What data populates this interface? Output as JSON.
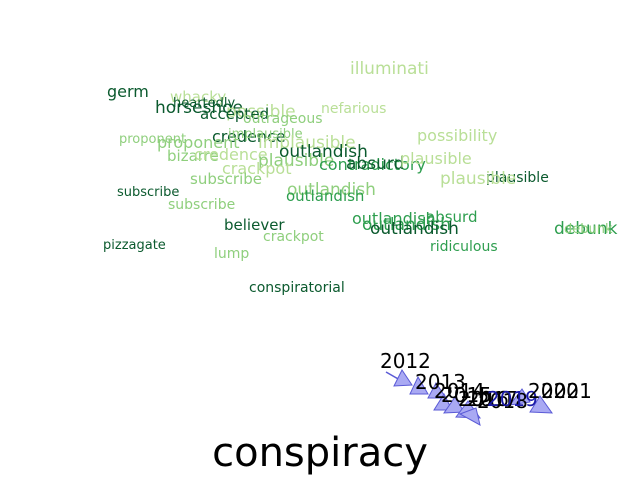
{
  "title": "conspiracy",
  "palette": {
    "dark": "#0b5a2e",
    "mid": "#2e9e4f",
    "light": "#8fcf7d",
    "pale": "#b9df97",
    "arrow_fill": "#a9a9f3",
    "arrow_stroke": "#5a5ad6"
  },
  "words": [
    {
      "text": "illuminati",
      "shade": "pale"
    },
    {
      "text": "germ",
      "shade": "dark"
    },
    {
      "text": "whacky",
      "shade": "pale"
    },
    {
      "text": "heartedly",
      "shade": "dark"
    },
    {
      "text": "horseshoe",
      "shade": "dark"
    },
    {
      "text": "possible",
      "shade": "pale"
    },
    {
      "text": "accepted",
      "shade": "dark"
    },
    {
      "text": "outrageous",
      "shade": "light"
    },
    {
      "text": "nefarious",
      "shade": "pale"
    },
    {
      "text": "possibility",
      "shade": "pale"
    },
    {
      "text": "proponent",
      "shade": "light"
    },
    {
      "text": "credence",
      "shade": "dark"
    },
    {
      "text": "implausible",
      "shade": "light"
    },
    {
      "text": "proponent",
      "shade": "light"
    },
    {
      "text": "implausible",
      "shade": "pale"
    },
    {
      "text": "outlandish",
      "shade": "dark"
    },
    {
      "text": "bizarre",
      "shade": "light"
    },
    {
      "text": "credence",
      "shade": "pale"
    },
    {
      "text": "plausible",
      "shade": "light"
    },
    {
      "text": "contradictory",
      "shade": "mid"
    },
    {
      "text": "absurd",
      "shade": "dark"
    },
    {
      "text": "crackpot",
      "shade": "pale"
    },
    {
      "text": "plausible",
      "shade": "pale"
    },
    {
      "text": "subscribe",
      "shade": "light"
    },
    {
      "text": "plausible",
      "shade": "dark"
    },
    {
      "text": "plausible",
      "shade": "pale"
    },
    {
      "text": "outlandish",
      "shade": "light"
    },
    {
      "text": "subscribe",
      "shade": "dark"
    },
    {
      "text": "outlandish",
      "shade": "mid"
    },
    {
      "text": "subscribe",
      "shade": "light"
    },
    {
      "text": "outlandish",
      "shade": "mid"
    },
    {
      "text": "absurd",
      "shade": "mid"
    },
    {
      "text": "outlandish",
      "shade": "mid"
    },
    {
      "text": "outlandish",
      "shade": "dark"
    },
    {
      "text": "believer",
      "shade": "dark"
    },
    {
      "text": "debunk",
      "shade": "mid"
    },
    {
      "text": "debunk",
      "shade": "light"
    },
    {
      "text": "crackpot",
      "shade": "light"
    },
    {
      "text": "pizzagate",
      "shade": "dark"
    },
    {
      "text": "ridiculous",
      "shade": "mid"
    },
    {
      "text": "lump",
      "shade": "light"
    },
    {
      "text": "conspiratorial",
      "shade": "dark"
    }
  ],
  "years": [
    "2012",
    "2013",
    "2014",
    "2015",
    "2016",
    "2017",
    "2018",
    "2019",
    "2020",
    "2021"
  ]
}
